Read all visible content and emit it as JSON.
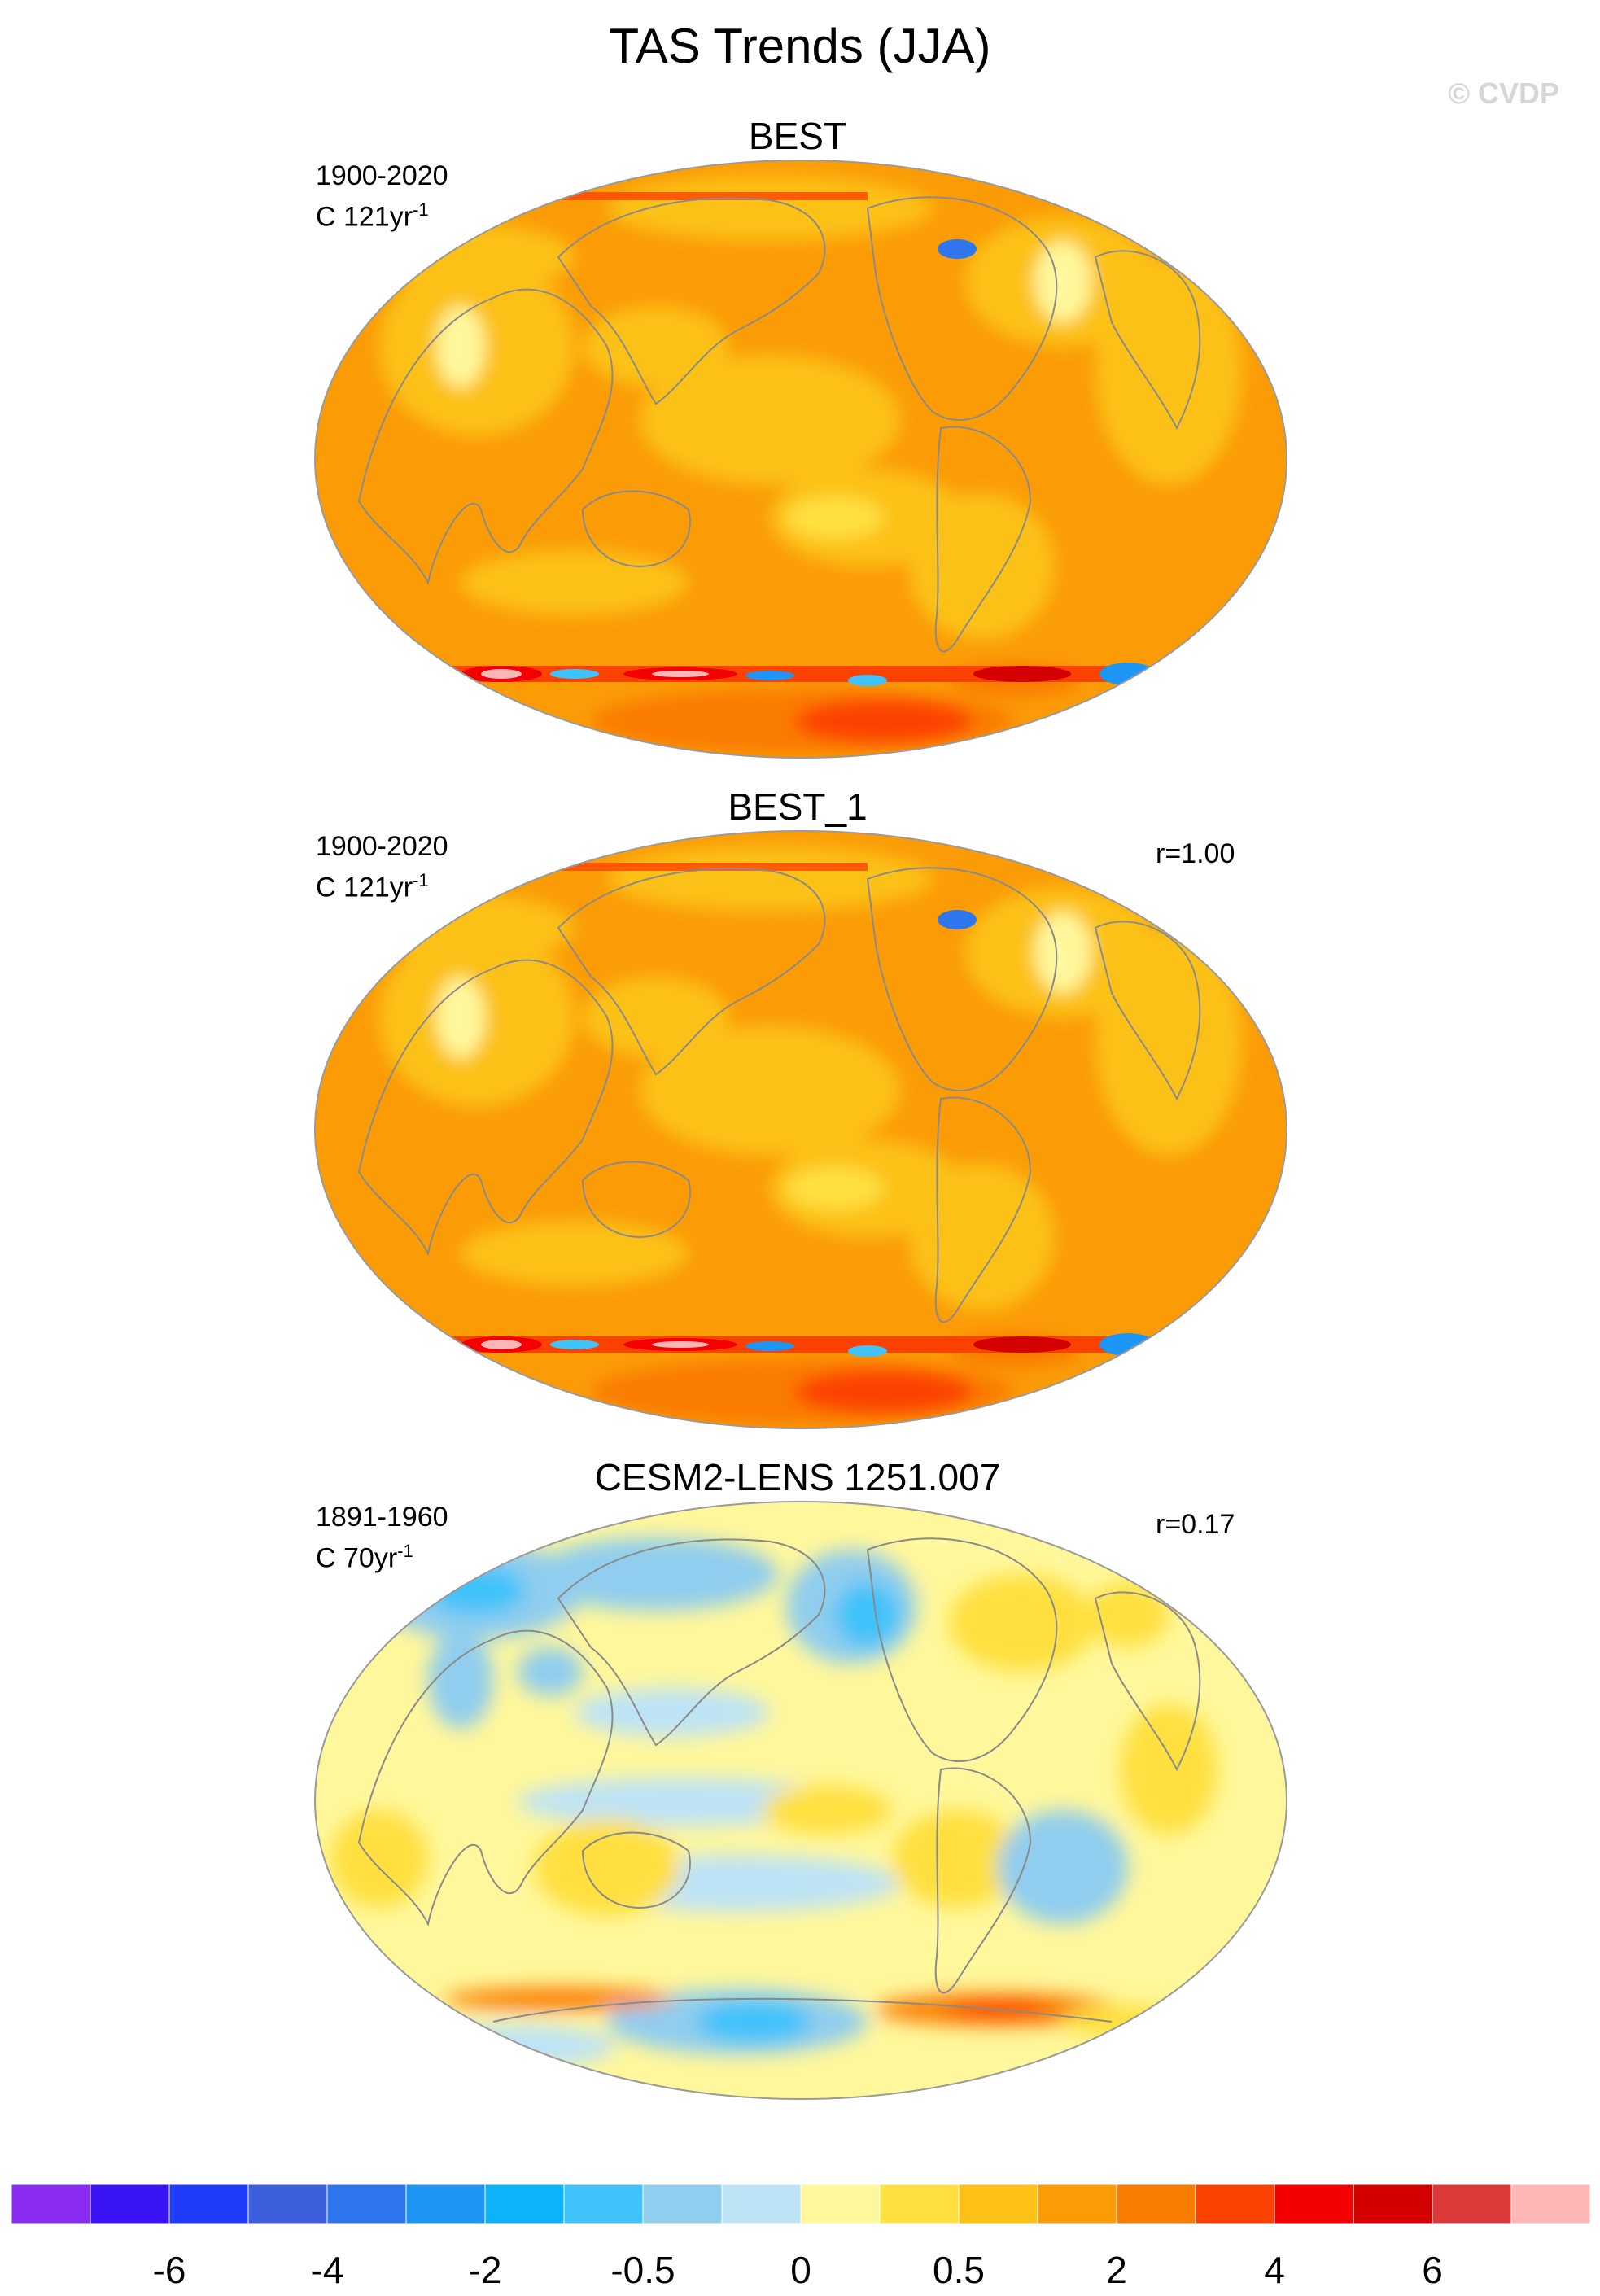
{
  "title": "TAS Trends (JJA)",
  "watermark": "© CVDP",
  "panels": [
    {
      "title": "BEST",
      "period": "1900-2020",
      "units": "C 121yr",
      "units_sup": "-1",
      "corr": "",
      "base": "#fb9c07"
    },
    {
      "title": "BEST_1",
      "period": "1900-2020",
      "units": "C 121yr",
      "units_sup": "-1",
      "corr": "r=1.00",
      "base": "#fb9c07"
    },
    {
      "title": "CESM2-LENS 1251.007",
      "period": "1891-1960",
      "units": "C 70yr",
      "units_sup": "-1",
      "corr": "r=0.17",
      "base": "#fff79b"
    }
  ],
  "colorbar": {
    "colors": [
      "#8a2bf2",
      "#3a14f5",
      "#1f3cf8",
      "#3e5fdd",
      "#2f75ee",
      "#1e96f6",
      "#0cb3f9",
      "#40c2fa",
      "#90cdee",
      "#bde3f6",
      "#fff79b",
      "#ffe040",
      "#fcc114",
      "#fb9c07",
      "#fa7c00",
      "#fc4200",
      "#f40000",
      "#d40000",
      "#dc3a3a",
      "#ffb6b6"
    ],
    "labels": [
      "-6",
      "-4",
      "-2",
      "-0.5",
      "0",
      "0.5",
      "2",
      "4",
      "6"
    ]
  }
}
